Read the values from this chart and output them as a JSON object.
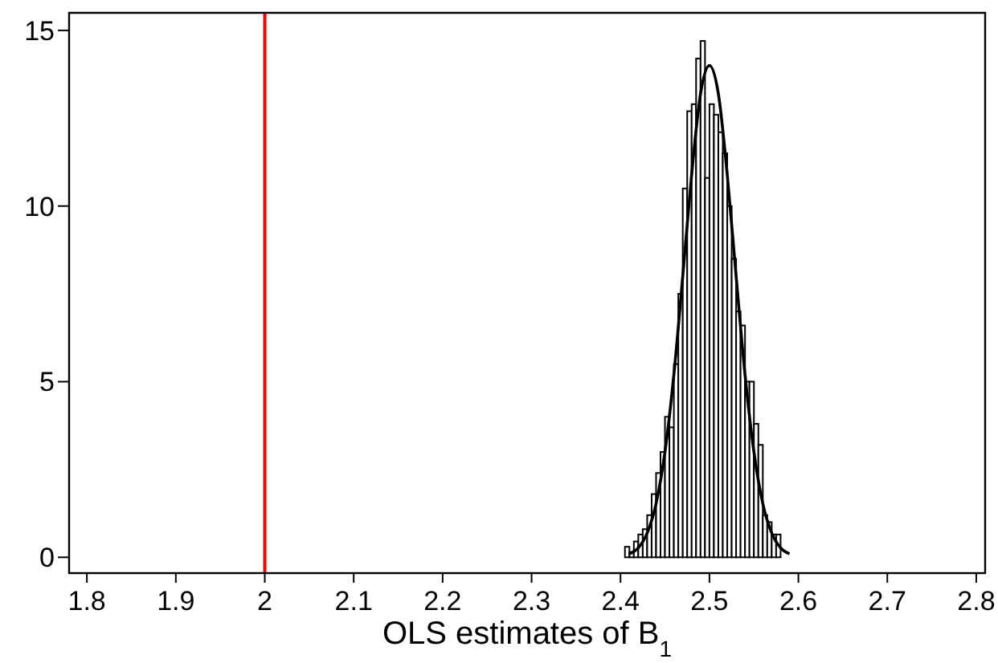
{
  "chart_data": {
    "type": "histogram",
    "xlabel": "OLS estimates of B$_{1}$",
    "bins": [
      2.405,
      2.41,
      2.415,
      2.42,
      2.425,
      2.43,
      2.435,
      2.44,
      2.445,
      2.45,
      2.455,
      2.46,
      2.465,
      2.47,
      2.475,
      2.48,
      2.485,
      2.49,
      2.495,
      2.5,
      2.505,
      2.51,
      2.515,
      2.52,
      2.525,
      2.53,
      2.535,
      2.54,
      2.545,
      2.55,
      2.555,
      2.56,
      2.565,
      2.57,
      2.575,
      2.58
    ],
    "series": [
      {
        "color": "#ffffff",
        "values": [
          0.3,
          0.15,
          0.45,
          0.65,
          0.8,
          1.2,
          1.8,
          2.4,
          3.0,
          4.0,
          3.7,
          5.5,
          7.5,
          10.5,
          12.7,
          12.9,
          14.2,
          14.7,
          10.8,
          12.9,
          12.6,
          12.1,
          11.5,
          10,
          8.5,
          7.0,
          6.6,
          5.0,
          5.0,
          3.8,
          3.2,
          1.2,
          1.0,
          0.65,
          0.65
        ]
      },
      {
        "type": "line",
        "color": "#000000",
        "x": [
          2.41,
          2.42,
          2.43,
          2.44,
          2.45,
          2.46,
          2.47,
          2.48,
          2.49,
          2.5,
          2.51,
          2.52,
          2.53,
          2.54,
          2.55,
          2.56,
          2.57,
          2.58,
          2.59
        ],
        "values": [
          0.1,
          0.27,
          0.69,
          1.53,
          3.0,
          5.2,
          8.0,
          10.9,
          13.2,
          14,
          13.2,
          10.9,
          8.0,
          5.2,
          3.0,
          1.53,
          0.69,
          0.27,
          0.1
        ]
      }
    ],
    "ref_lines": [
      {
        "axis": "x",
        "value": 2,
        "color": "#ff0000"
      }
    ],
    "xlim": [
      1.78,
      2.81
    ],
    "xticks": [
      1.8,
      1.9,
      2,
      2.1,
      2.2,
      2.3,
      2.4,
      2.5,
      2.6,
      2.7,
      2.8
    ],
    "ylim": [
      -0.45,
      15.5
    ],
    "yticks": [
      0,
      5,
      10,
      15
    ],
    "grid": false
  }
}
